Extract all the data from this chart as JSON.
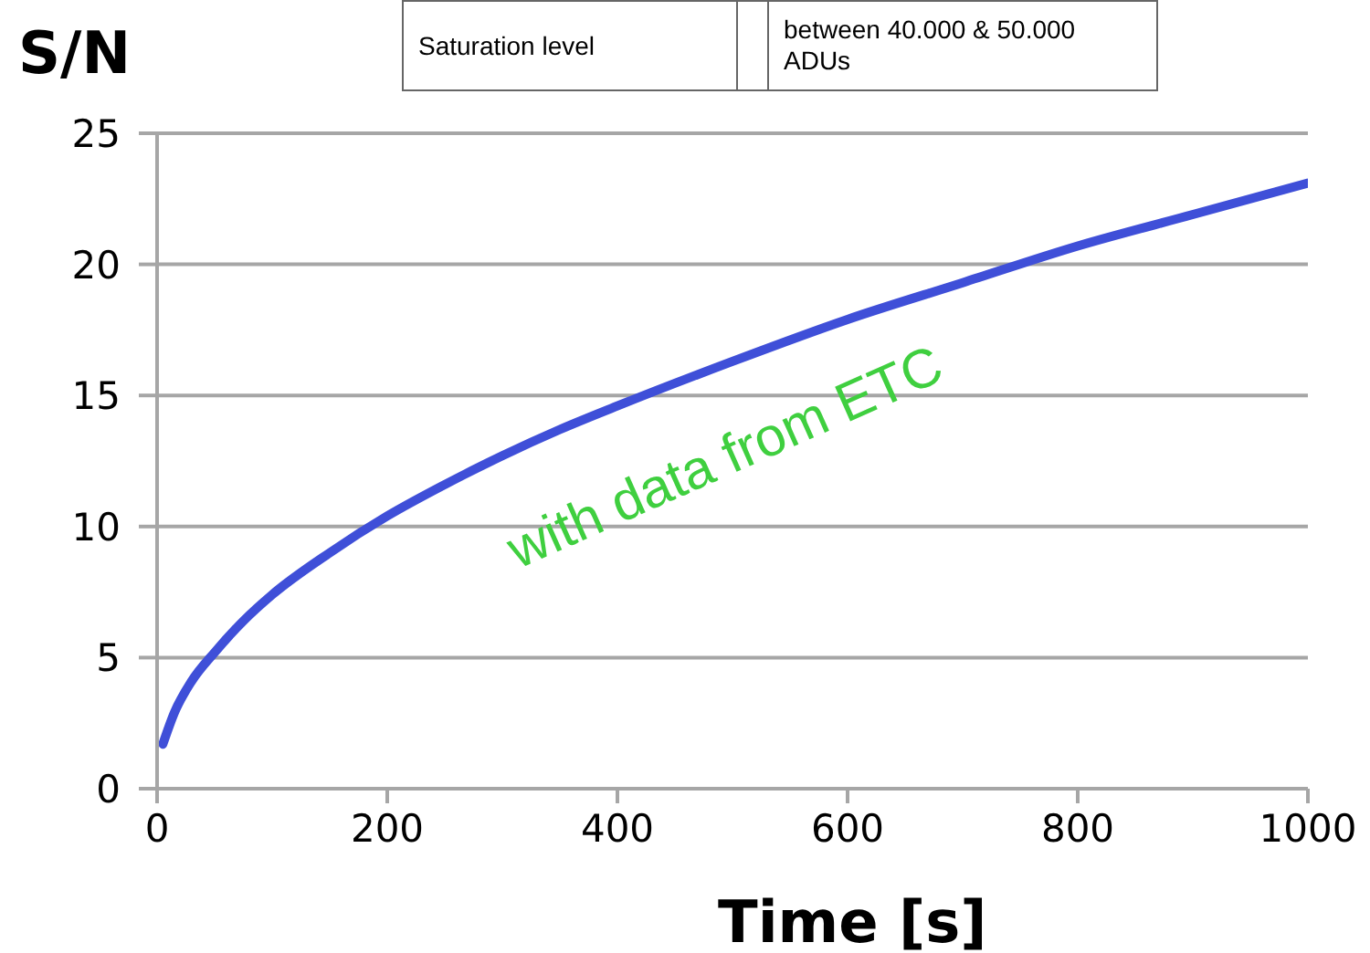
{
  "chart_data": {
    "type": "line",
    "ylabel": "S/N",
    "xlabel": "Time [s]",
    "x": [
      5,
      15,
      30,
      50,
      75,
      100,
      150,
      200,
      250,
      300,
      350,
      400,
      500,
      600,
      700,
      800,
      900,
      1000
    ],
    "series": [
      {
        "color": "#3f4fd8",
        "values": [
          1.7,
          2.9,
          4.1,
          5.2,
          6.4,
          7.4,
          9,
          10.4,
          11.6,
          12.7,
          13.7,
          14.6,
          16.3,
          17.9,
          19.3,
          20.7,
          21.9,
          23.1
        ]
      }
    ],
    "xlim": [
      0,
      1000
    ],
    "xticks": [
      0,
      200,
      400,
      600,
      800,
      1000
    ],
    "ylim": [
      0,
      25
    ],
    "yticks": [
      0,
      5,
      10,
      15,
      20,
      25
    ],
    "grid": "y",
    "marker": "none",
    "line_style": "solid",
    "annotations": [
      "Saturation level",
      "between 40.000 & 50.000 ADUs",
      "with data from ETC"
    ]
  }
}
